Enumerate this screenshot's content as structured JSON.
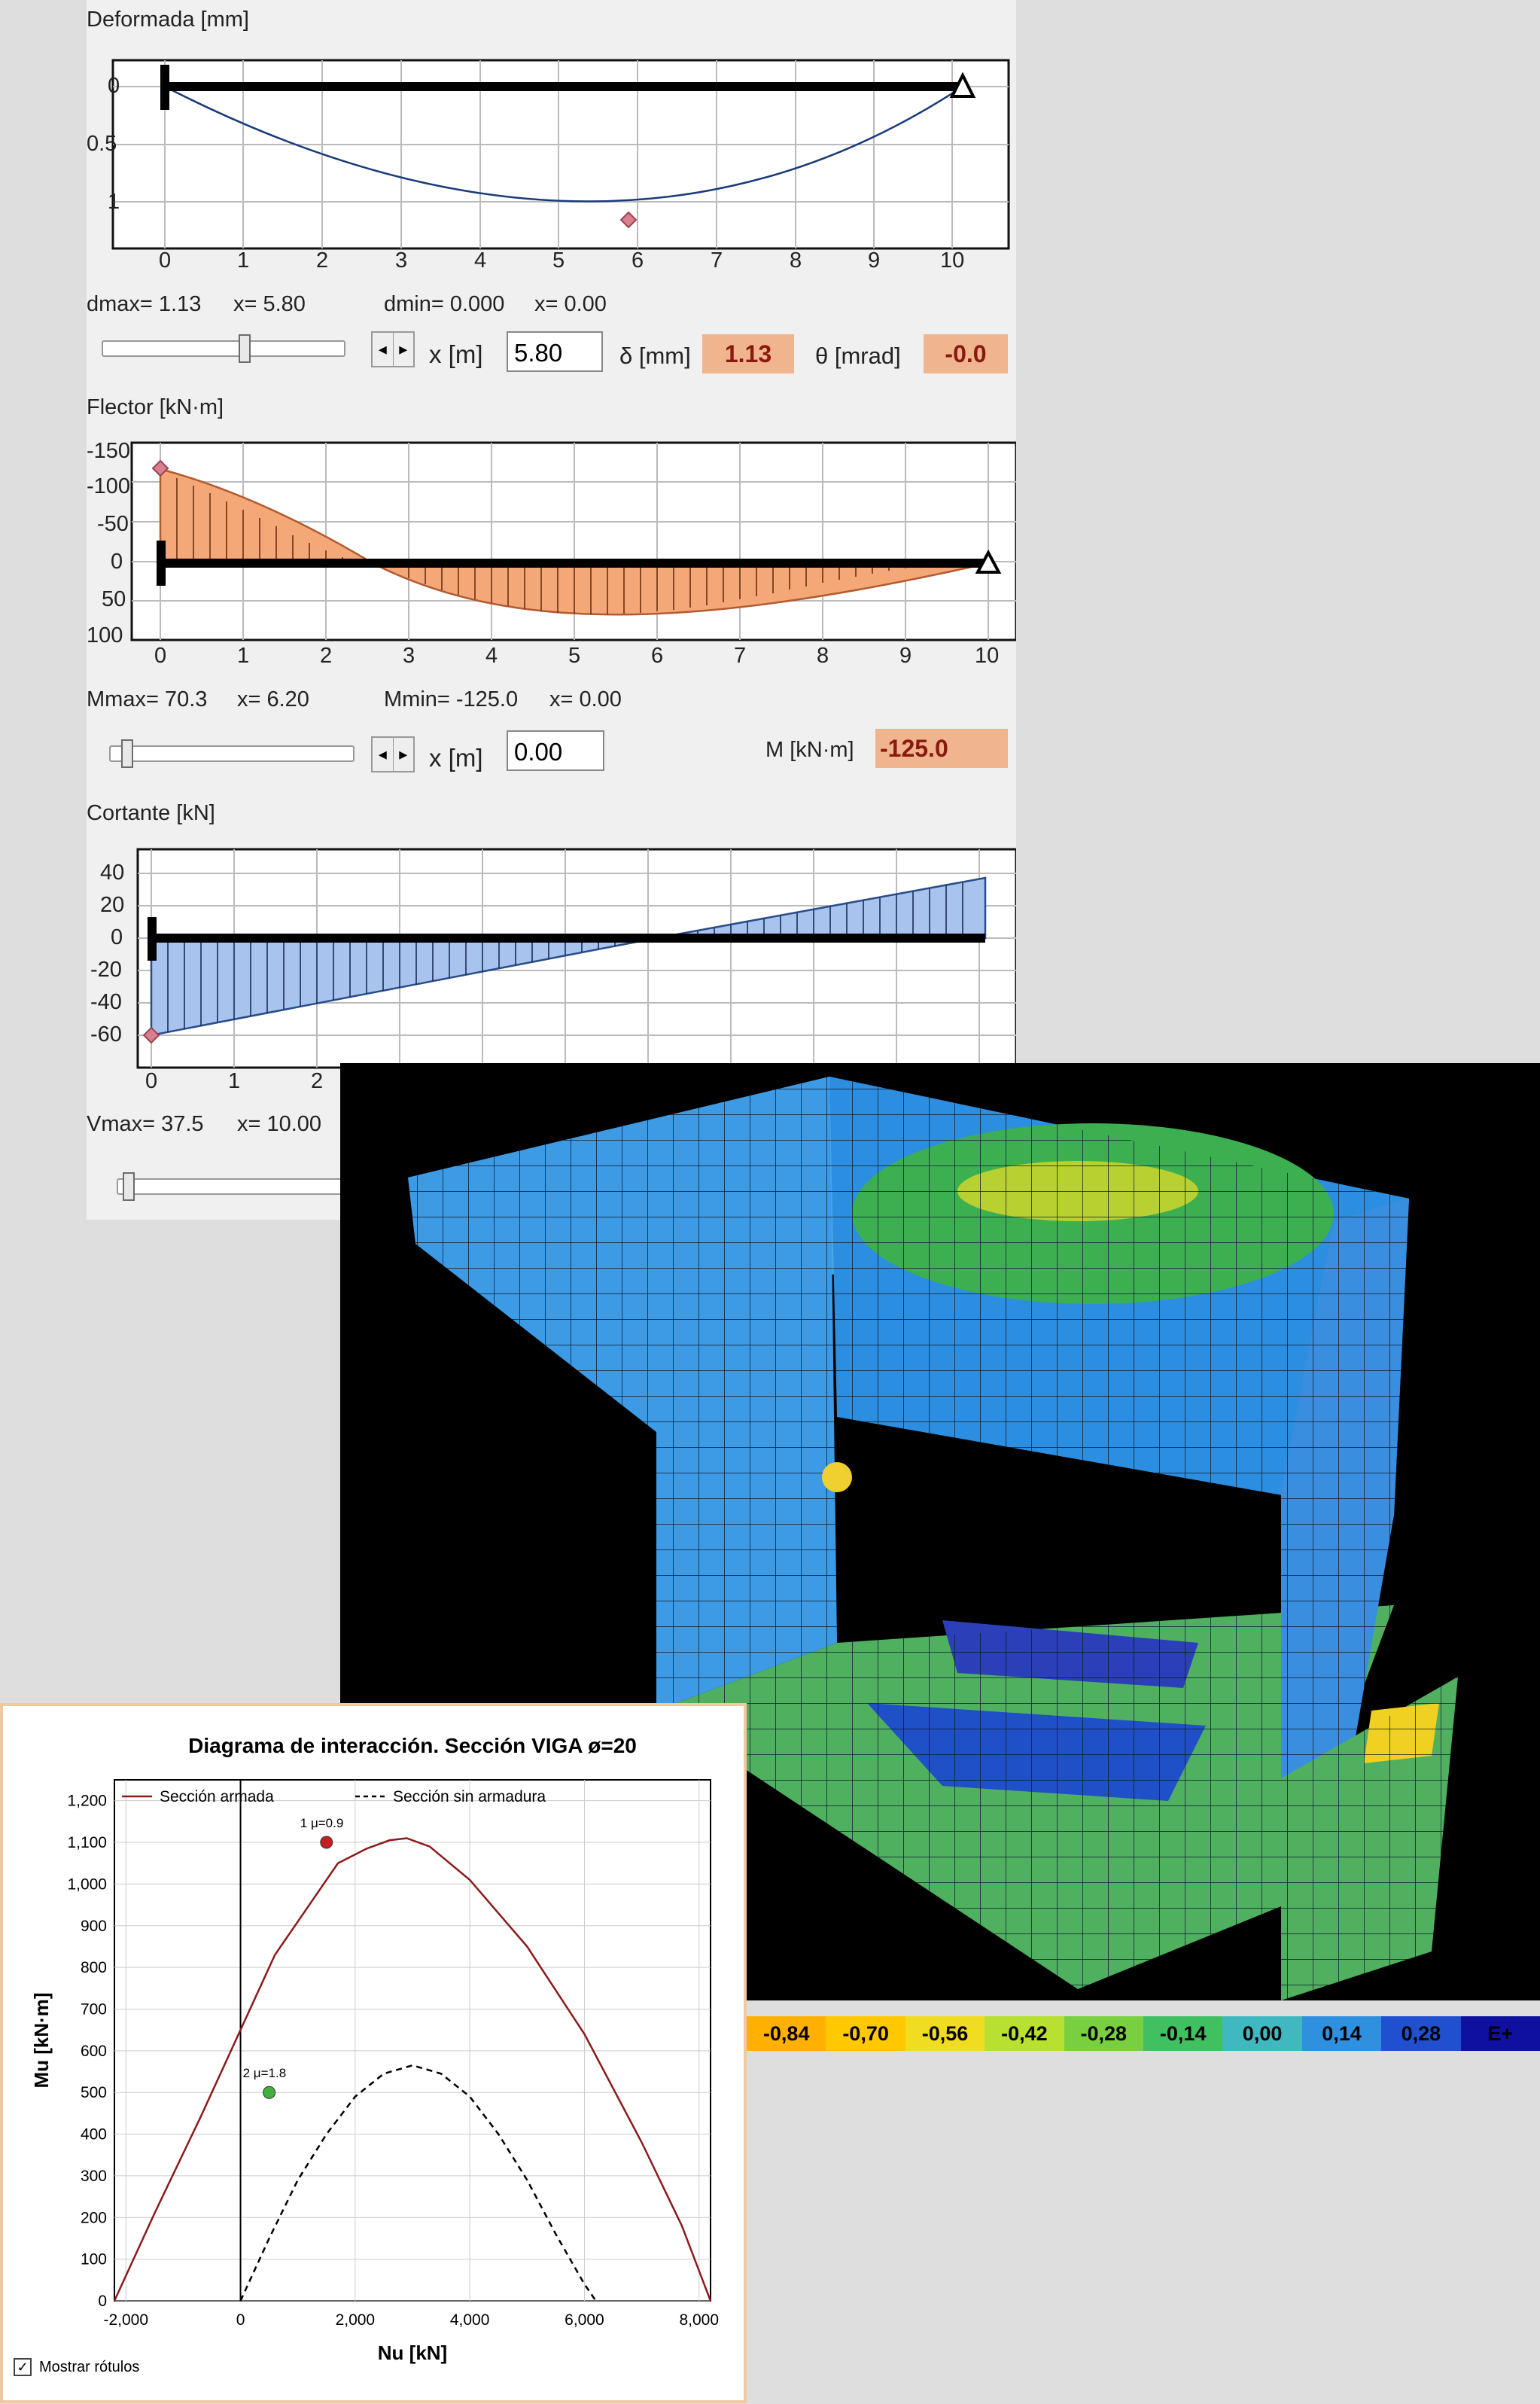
{
  "deformada": {
    "title": "Deformada [mm]",
    "y_ticks": [
      "0",
      "0.5",
      "1"
    ],
    "x_ticks": [
      "0",
      "1",
      "2",
      "3",
      "4",
      "5",
      "6",
      "7",
      "8",
      "9",
      "10"
    ],
    "dmax_label": "dmax= 1.13",
    "dmax_x_label": "x= 5.80",
    "dmin_label": "dmin= 0.000",
    "dmin_x_label": "x= 0.00",
    "x_label": "x [m]",
    "x_value": "5.80",
    "delta_label": "δ [mm]",
    "delta_value": "1.13",
    "theta_label": "θ [mrad]",
    "theta_value": "-0.0",
    "slider_position": 0.58
  },
  "flector": {
    "title": "Flector [kN·m]",
    "y_ticks": [
      "-150",
      "-100",
      "-50",
      "0",
      "50",
      "100"
    ],
    "x_ticks": [
      "0",
      "1",
      "2",
      "3",
      "4",
      "5",
      "6",
      "7",
      "8",
      "9",
      "10"
    ],
    "mmax_label": "Mmax= 70.3",
    "mmax_x_label": "x= 6.20",
    "mmin_label": "Mmin= -125.0",
    "mmin_x_label": "x= 0.00",
    "x_label": "x [m]",
    "x_value": "0.00",
    "m_label": "M [kN·m]",
    "m_value": "-125.0",
    "slider_position": 0.0
  },
  "cortante": {
    "title": "Cortante [kN]",
    "y_ticks": [
      "40",
      "20",
      "0",
      "-20",
      "-40",
      "-60"
    ],
    "x_ticks": [
      "0",
      "1",
      "2"
    ],
    "vmax_label": "Vmax= 37.5",
    "vmax_x_label": "x= 10.00",
    "slider_position": 0.0
  },
  "fem_legend": [
    "-0,84",
    "-0,70",
    "-0,56",
    "-0,42",
    "-0,28",
    "-0,14",
    "0,00",
    "0,14",
    "0,28",
    "E+"
  ],
  "fem_legend_colors": [
    "#ffb000",
    "#ffc800",
    "#f0dc20",
    "#b8e030",
    "#78d040",
    "#40c060",
    "#40b8c0",
    "#3090e0",
    "#2050d0",
    "#1010a0"
  ],
  "interaction": {
    "checkbox_label": "Mostrar rótulos",
    "checkbox_checked": true,
    "chart_data": {
      "type": "line",
      "title": "Diagrama de interacción. Sección VIGA ø=20",
      "xlabel": "Nu [kN]",
      "ylabel": "Mu [kN·m]",
      "xlim": [
        -2200,
        8200
      ],
      "ylim": [
        0,
        1250
      ],
      "x_ticks": [
        "-2,000",
        "0",
        "2,000",
        "4,000",
        "6,000",
        "8,000"
      ],
      "y_ticks": [
        "0",
        "100",
        "200",
        "300",
        "400",
        "500",
        "600",
        "700",
        "800",
        "900",
        "1,000",
        "1,100",
        "1,200"
      ],
      "grid": true,
      "legend": "top",
      "series": [
        {
          "name": "Sección armada",
          "style": "solid",
          "color": "#8b1a1a",
          "x": [
            -2200,
            -1500,
            -700,
            0,
            600,
            1200,
            1700,
            2200,
            2600,
            2900,
            3300,
            4000,
            5000,
            6000,
            7000,
            7700,
            8200
          ],
          "y": [
            0,
            210,
            440,
            650,
            830,
            950,
            1050,
            1085,
            1105,
            1110,
            1090,
            1010,
            850,
            640,
            380,
            180,
            0
          ]
        },
        {
          "name": "Sección sin armadura",
          "style": "dashed",
          "color": "#000000",
          "x": [
            0,
            500,
            1000,
            1500,
            2000,
            2500,
            3000,
            3500,
            4000,
            4500,
            5000,
            5500,
            6000,
            6200
          ],
          "y": [
            0,
            150,
            290,
            400,
            490,
            545,
            565,
            545,
            490,
            400,
            290,
            160,
            40,
            0
          ]
        }
      ],
      "points": [
        {
          "label": "1 μ=0.9",
          "x": 1500,
          "y": 1100,
          "color": "#c02020"
        },
        {
          "label": "2 μ=1.8",
          "x": 500,
          "y": 500,
          "color": "#40b040"
        }
      ]
    }
  }
}
